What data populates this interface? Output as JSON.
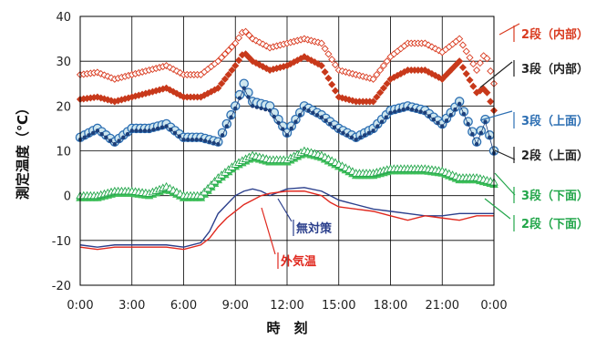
{
  "chart_data": {
    "type": "line",
    "xlabel": "時　刻",
    "ylabel": "測定温度（℃）",
    "xlim": [
      0,
      24
    ],
    "ylim": [
      -20,
      40
    ],
    "yticks": [
      -20,
      -10,
      0,
      10,
      20,
      30,
      40
    ],
    "xticks": [
      "0:00",
      "3:00",
      "6:00",
      "9:00",
      "12:00",
      "15:00",
      "18:00",
      "21:00",
      "0:00"
    ],
    "grid": true,
    "series": [
      {
        "name": "2段（内部）",
        "color": "#d93a1f",
        "marker": "diamond-open",
        "x": [
          0,
          1,
          2,
          3,
          4,
          5,
          6,
          7,
          8,
          9,
          9.5,
          10,
          11,
          12,
          13,
          14,
          15,
          16,
          17,
          18,
          19,
          20,
          21,
          22,
          23,
          23.5,
          24
        ],
        "y": [
          27,
          27.5,
          26,
          27,
          28,
          29,
          27,
          27,
          30,
          34,
          37,
          35,
          33,
          34,
          35,
          34,
          28,
          27,
          26,
          31,
          34,
          34,
          32,
          35,
          28,
          32,
          25
        ]
      },
      {
        "name": "3段（内部）",
        "color": "#c8391b",
        "marker": "diamond-filled",
        "x": [
          0,
          1,
          2,
          3,
          4,
          5,
          6,
          7,
          8,
          9,
          9.5,
          10,
          11,
          12,
          13,
          14,
          15,
          16,
          17,
          18,
          19,
          20,
          21,
          22,
          23,
          23.5,
          24
        ],
        "y": [
          21.5,
          22,
          21,
          22,
          23,
          24,
          22,
          22,
          24,
          29,
          32,
          30,
          28,
          29,
          31,
          29,
          22,
          21,
          21,
          26,
          28,
          28,
          26,
          30,
          23,
          24,
          19
        ]
      },
      {
        "name": "3段（上面）",
        "color": "#2d6fb3",
        "marker": "circle",
        "x": [
          0,
          1,
          2,
          3,
          4,
          5,
          6,
          7,
          8,
          9,
          9.5,
          10,
          11,
          12,
          13,
          14,
          15,
          16,
          17,
          18,
          19,
          20,
          21,
          22,
          23,
          23.5,
          24
        ],
        "y": [
          13,
          15,
          12,
          15,
          15,
          16,
          13,
          13,
          12,
          20,
          25,
          21,
          20,
          14,
          20,
          18,
          15,
          13,
          15,
          19,
          20,
          19,
          16,
          21,
          12,
          17,
          10
        ]
      },
      {
        "name": "2段（上面）",
        "color": "#1c3f7a",
        "marker": "dot",
        "x": [
          0,
          1,
          2,
          3,
          4,
          5,
          6,
          7,
          8,
          9,
          9.5,
          10,
          11,
          12,
          13,
          14,
          15,
          16,
          17,
          18,
          19,
          20,
          21,
          22,
          23,
          23.5,
          24
        ],
        "y": [
          12.5,
          14.5,
          11.5,
          14.5,
          14.5,
          15.5,
          12.5,
          12.5,
          11.5,
          19.5,
          24,
          20,
          19,
          13.5,
          19.5,
          17.5,
          14.5,
          12.5,
          14.5,
          18.5,
          19.5,
          18.5,
          15.5,
          20.5,
          11.5,
          16.5,
          9.5
        ]
      },
      {
        "name": "3段（下面）",
        "color": "#22a64a",
        "marker": "triangle-open",
        "x": [
          0,
          1,
          2,
          3,
          4,
          5,
          6,
          7,
          8,
          9,
          10,
          11,
          12,
          13,
          14,
          15,
          16,
          17,
          18,
          19,
          20,
          21,
          22,
          23,
          24
        ],
        "y": [
          0,
          0,
          1,
          1,
          0.5,
          2,
          0,
          0,
          4,
          7,
          9,
          8,
          8,
          10,
          9,
          7,
          5,
          5,
          6,
          6,
          6,
          5.5,
          4,
          4,
          3
        ]
      },
      {
        "name": "2段（下面）",
        "color": "#3fbf5a",
        "marker": "triangle-filled",
        "x": [
          0,
          1,
          2,
          3,
          4,
          5,
          6,
          7,
          8,
          9,
          10,
          11,
          12,
          13,
          14,
          15,
          16,
          17,
          18,
          19,
          20,
          21,
          22,
          23,
          24
        ],
        "y": [
          -0.5,
          -0.5,
          0.5,
          0.5,
          0,
          1.5,
          -0.5,
          -0.5,
          3.5,
          6.5,
          8.5,
          7.5,
          7.5,
          9.5,
          8.5,
          6.5,
          4.5,
          4.5,
          5.5,
          5.5,
          5.5,
          5,
          3.5,
          3.5,
          2.5
        ]
      },
      {
        "name": "無対策",
        "color": "#2b3f8c",
        "marker": "none",
        "x": [
          0,
          1,
          2,
          3,
          4,
          5,
          6,
          7,
          7.5,
          8,
          8.5,
          9,
          9.5,
          10,
          10.5,
          11,
          12,
          13,
          14,
          14.5,
          15,
          16,
          17,
          18,
          19,
          20,
          21,
          22,
          23,
          24
        ],
        "y": [
          -11,
          -11.5,
          -11,
          -11,
          -11,
          -11,
          -11.5,
          -10.5,
          -8,
          -4,
          -2,
          0,
          1,
          1.5,
          1,
          0,
          1.5,
          1.8,
          1,
          0,
          -1,
          -2,
          -3,
          -3.5,
          -4,
          -4.5,
          -4.5,
          -4,
          -4,
          -4
        ]
      },
      {
        "name": "外気温",
        "color": "#e0281e",
        "marker": "none",
        "x": [
          0,
          1,
          2,
          3,
          4,
          5,
          6,
          7,
          7.5,
          8,
          8.5,
          9,
          9.5,
          10,
          10.5,
          11,
          12,
          13,
          14,
          14.5,
          15,
          16,
          17,
          18,
          19,
          20,
          21,
          22,
          23,
          24
        ],
        "y": [
          -11.5,
          -12,
          -11.5,
          -11.5,
          -11.5,
          -11.5,
          -12,
          -11,
          -9.5,
          -7,
          -5,
          -3.5,
          -2,
          -1,
          0,
          0.5,
          1,
          1,
          0,
          -1.5,
          -2.5,
          -3,
          -3.5,
          -4.5,
          -5.5,
          -4.5,
          -5,
          -5.5,
          -4.5,
          -4.5
        ]
      }
    ],
    "labels": [
      {
        "text": "2段（内部）",
        "color": "#d93a1f",
        "series": "2段（内部）"
      },
      {
        "text": "3段（内部）",
        "color": "#222222",
        "series": "3段（内部）"
      },
      {
        "text": "3段（上面）",
        "color": "#2d6fb3",
        "series": "3段（上面）"
      },
      {
        "text": "2段（上面）",
        "color": "#222222",
        "series": "2段（上面）"
      },
      {
        "text": "3段（下面）",
        "color": "#22a64a",
        "series": "3段（下面）"
      },
      {
        "text": "2段（下面）",
        "color": "#22a64a",
        "series": "2段（下面）"
      },
      {
        "text": "無対策",
        "color": "#2b3f8c",
        "series": "無対策"
      },
      {
        "text": "外気温",
        "color": "#e0281e",
        "series": "外気温"
      }
    ]
  }
}
